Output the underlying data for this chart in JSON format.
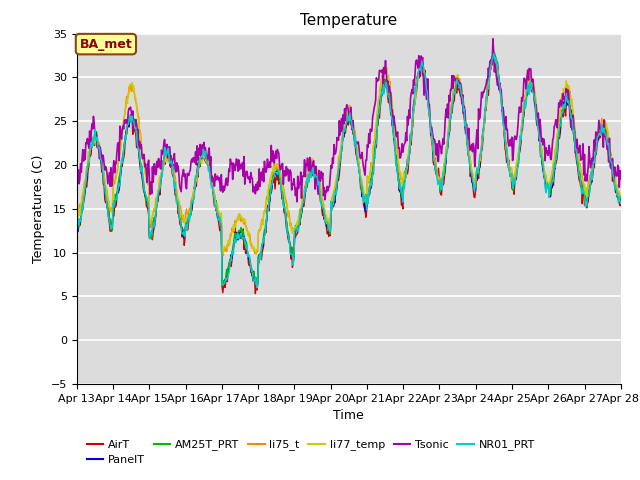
{
  "title": "Temperature",
  "xlabel": "Time",
  "ylabel": "Temperatures (C)",
  "ylim": [
    -5,
    35
  ],
  "yticks": [
    -5,
    0,
    5,
    10,
    15,
    20,
    25,
    30,
    35
  ],
  "annotation_text": "BA_met",
  "annotation_bg": "#FFFF99",
  "annotation_border": "#8B4513",
  "annotation_text_color": "#8B0000",
  "bg_color": "#DCDCDC",
  "series_order": [
    "AirT",
    "PanelT",
    "AM25T_PRT",
    "li75_t",
    "li77_temp",
    "Tsonic",
    "NR01_PRT"
  ],
  "series": {
    "AirT": {
      "color": "#CC0000",
      "lw": 1.0
    },
    "PanelT": {
      "color": "#0000CC",
      "lw": 1.0
    },
    "AM25T_PRT": {
      "color": "#00BB00",
      "lw": 1.0
    },
    "li75_t": {
      "color": "#FF8800",
      "lw": 1.0
    },
    "li77_temp": {
      "color": "#CCCC00",
      "lw": 1.0
    },
    "Tsonic": {
      "color": "#AA00AA",
      "lw": 1.2
    },
    "NR01_PRT": {
      "color": "#00CCCC",
      "lw": 1.0
    }
  },
  "legend_ncol": 6
}
